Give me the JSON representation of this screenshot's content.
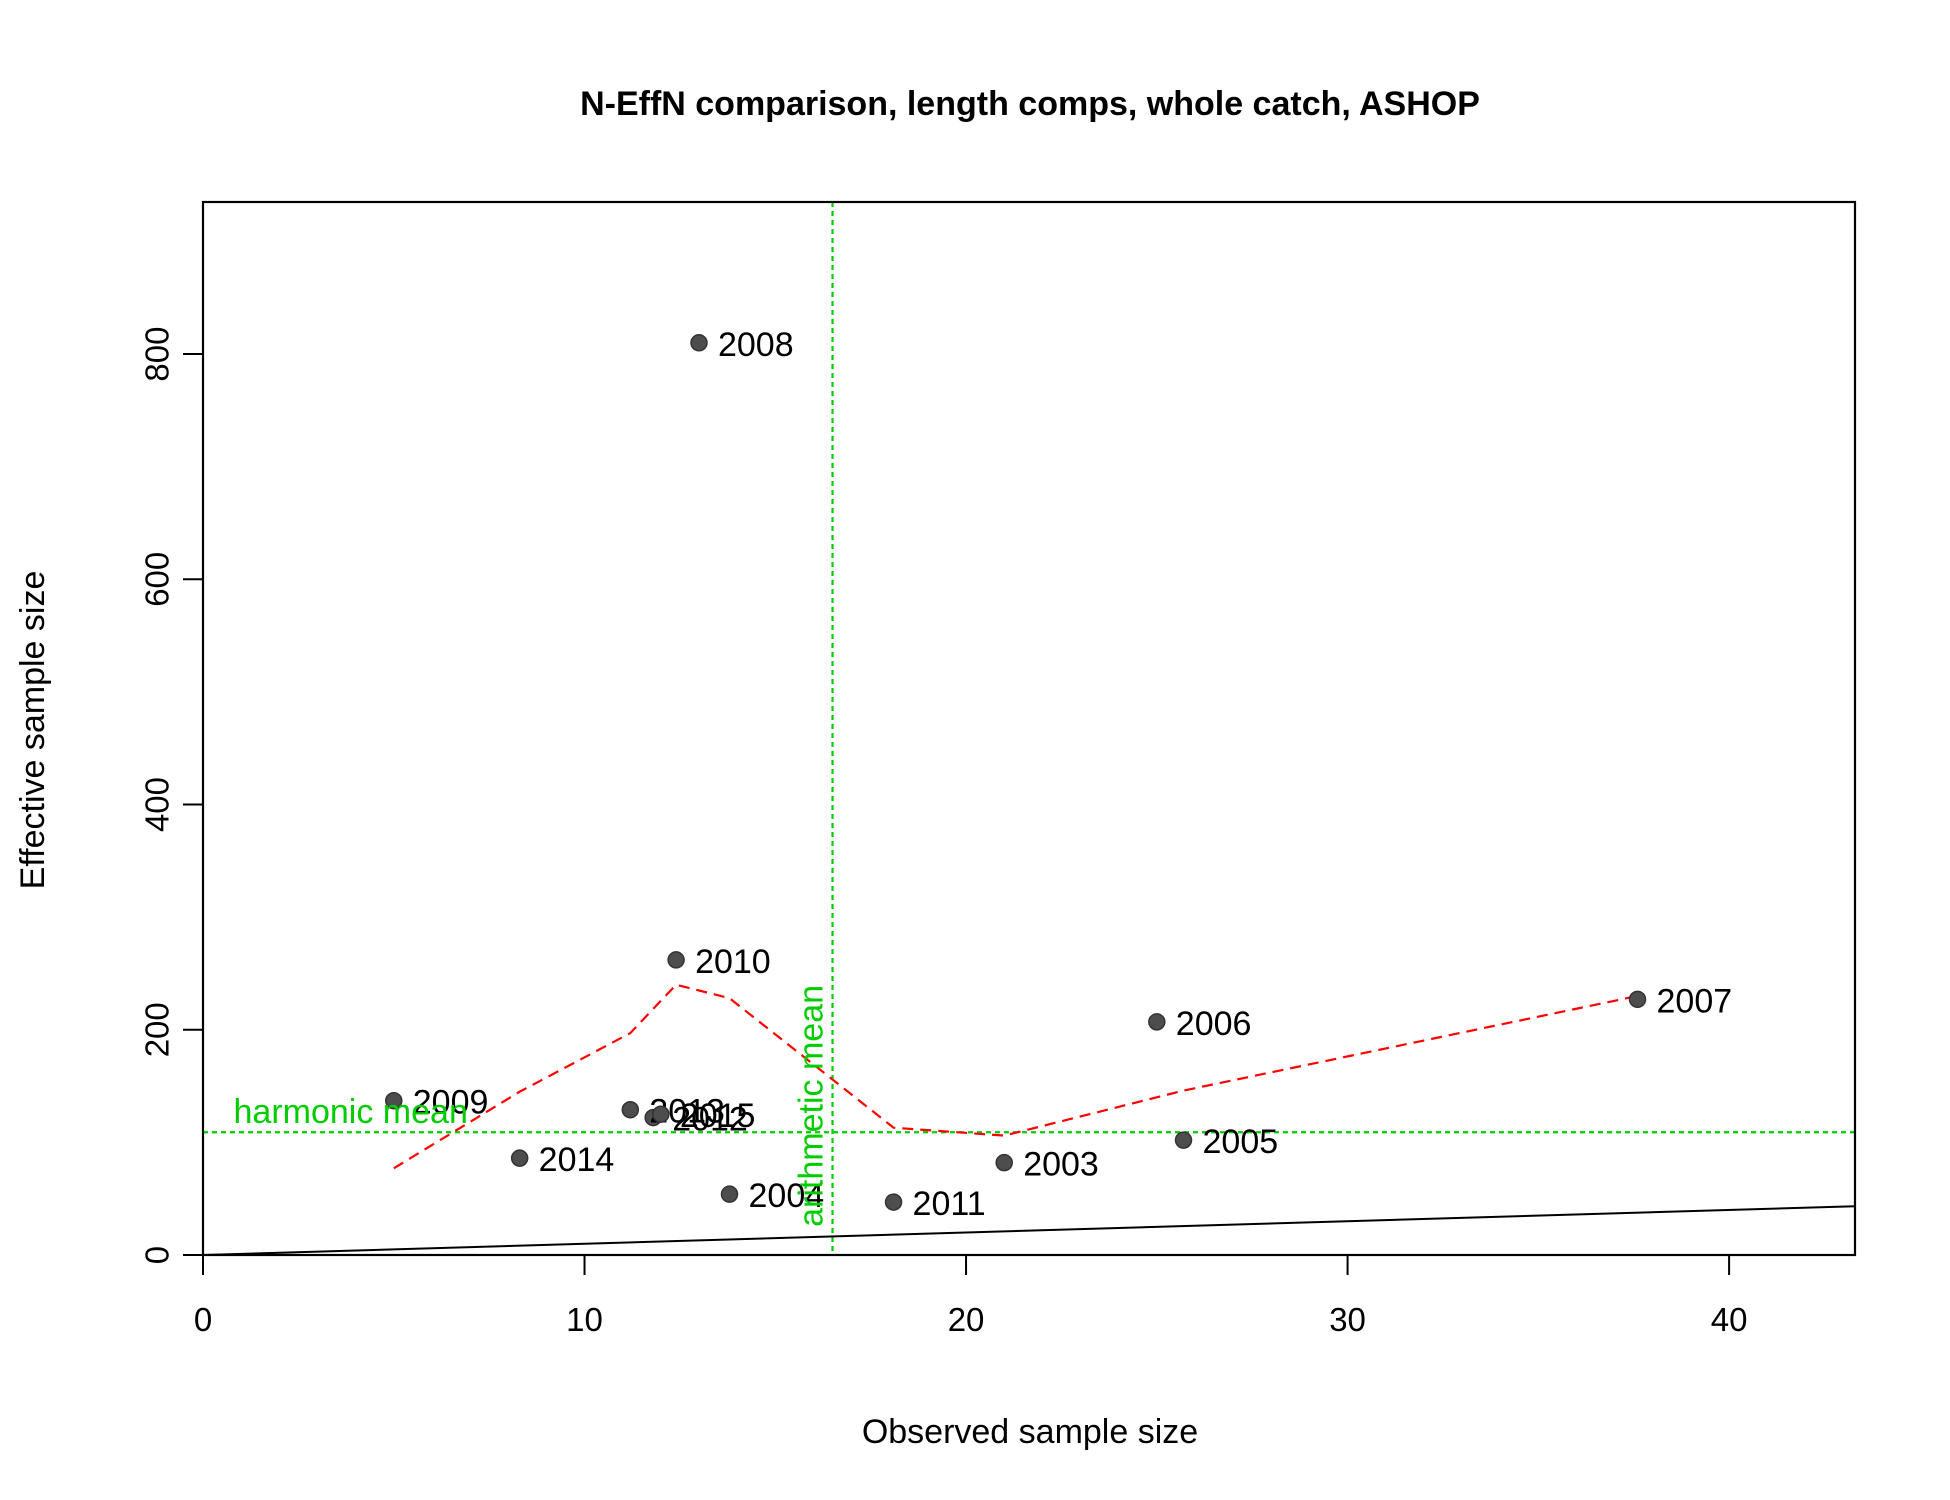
{
  "chart_data": {
    "type": "scatter",
    "title": "N-EffN comparison, length comps, whole catch, ASHOP",
    "xlabel": "Observed sample size",
    "ylabel": "Effective sample size",
    "xlim": [
      0,
      43.3
    ],
    "ylim": [
      0,
      935
    ],
    "x_ticks": [
      0,
      10,
      20,
      30,
      40
    ],
    "y_ticks": [
      0,
      200,
      400,
      600,
      800
    ],
    "points": [
      {
        "label": "2003",
        "x": 21.0,
        "y": 82
      },
      {
        "label": "2004",
        "x": 13.8,
        "y": 54
      },
      {
        "label": "2005",
        "x": 25.7,
        "y": 102
      },
      {
        "label": "2006",
        "x": 25.0,
        "y": 207
      },
      {
        "label": "2007",
        "x": 37.6,
        "y": 227
      },
      {
        "label": "2008",
        "x": 13.0,
        "y": 810
      },
      {
        "label": "2009",
        "x": 5.0,
        "y": 137
      },
      {
        "label": "2010",
        "x": 12.4,
        "y": 262
      },
      {
        "label": "2011",
        "x": 18.1,
        "y": 47
      },
      {
        "label": "2012",
        "x": 11.8,
        "y": 122
      },
      {
        "label": "2013",
        "x": 11.2,
        "y": 129
      },
      {
        "label": "2014",
        "x": 8.3,
        "y": 86
      },
      {
        "label": "2015",
        "x": 12.0,
        "y": 125
      }
    ],
    "smoother": {
      "color": "#ff0000",
      "style": "dashed",
      "points": [
        [
          5.0,
          77
        ],
        [
          8.3,
          145
        ],
        [
          11.2,
          197
        ],
        [
          12.4,
          240
        ],
        [
          13.8,
          228
        ],
        [
          18.1,
          113
        ],
        [
          21.0,
          106
        ],
        [
          25.0,
          140
        ],
        [
          25.7,
          146
        ],
        [
          37.6,
          230
        ]
      ]
    },
    "identity_line": {
      "color": "#000000",
      "slope": 1
    },
    "harmonic_mean": {
      "label": "harmonic mean",
      "value": 109,
      "color": "#00cd00"
    },
    "arithmetic_mean": {
      "label": "arithmetic mean",
      "value": 16.5,
      "color": "#00cd00"
    },
    "point_color": "#4d4d4d"
  }
}
